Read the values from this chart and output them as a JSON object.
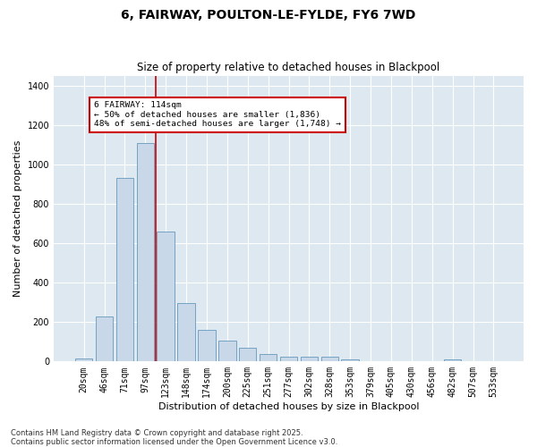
{
  "title": "6, FAIRWAY, POULTON-LE-FYLDE, FY6 7WD",
  "subtitle": "Size of property relative to detached houses in Blackpool",
  "xlabel": "Distribution of detached houses by size in Blackpool",
  "ylabel": "Number of detached properties",
  "categories": [
    "20sqm",
    "46sqm",
    "71sqm",
    "97sqm",
    "123sqm",
    "148sqm",
    "174sqm",
    "200sqm",
    "225sqm",
    "251sqm",
    "277sqm",
    "302sqm",
    "328sqm",
    "353sqm",
    "379sqm",
    "405sqm",
    "430sqm",
    "456sqm",
    "482sqm",
    "507sqm",
    "533sqm"
  ],
  "values": [
    15,
    230,
    930,
    1110,
    660,
    295,
    158,
    108,
    70,
    38,
    25,
    22,
    22,
    12,
    0,
    0,
    0,
    0,
    10,
    0,
    0
  ],
  "bar_color": "#c8d8e8",
  "bar_edge_color": "#6699bb",
  "vline_color": "#cc0000",
  "annotation_text": "6 FAIRWAY: 114sqm\n← 50% of detached houses are smaller (1,836)\n48% of semi-detached houses are larger (1,748) →",
  "annotation_box_color": "#cc0000",
  "bg_color": "#dde8f0",
  "grid_color": "#ffffff",
  "ylim": [
    0,
    1450
  ],
  "yticks": [
    0,
    200,
    400,
    600,
    800,
    1000,
    1200,
    1400
  ],
  "footnote": "Contains HM Land Registry data © Crown copyright and database right 2025.\nContains public sector information licensed under the Open Government Licence v3.0.",
  "title_fontsize": 10,
  "subtitle_fontsize": 8.5,
  "xlabel_fontsize": 8,
  "ylabel_fontsize": 8,
  "tick_fontsize": 7,
  "footnote_fontsize": 6,
  "vline_index": 3.5
}
